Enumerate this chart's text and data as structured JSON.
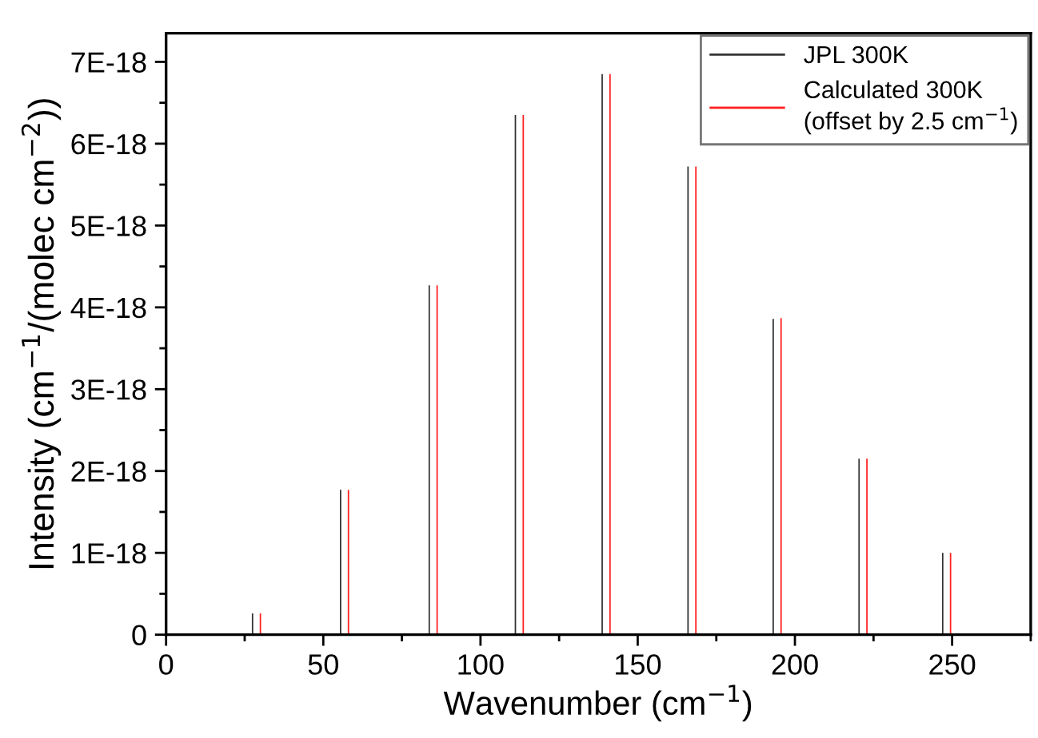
{
  "chart_data": {
    "type": "bar",
    "xlabel": "Wavenumber (cm$^{−1}$)",
    "ylabel": "Intensity (cm$^{−1}$/(molec cm$^{−2}$))",
    "series": [
      {
        "name": "JPL 300K",
        "color": "#333333",
        "x": [
          27.5,
          55.5,
          83.7,
          111.1,
          138.7,
          166,
          193.1,
          220.4,
          247
        ],
        "values": [
          2.6e-19,
          1.77e-18,
          4.27e-18,
          6.35e-18,
          6.85e-18,
          5.72e-18,
          3.86e-18,
          2.15e-18,
          1e-18
        ]
      },
      {
        "name": "Calculated 300K\n(offset by 2.5 cm$^{−1}$)",
        "color": "#ff2020",
        "x": [
          30,
          58,
          86.2,
          113.6,
          141.2,
          168.5,
          195.6,
          222.9,
          249.5
        ],
        "values": [
          2.6e-19,
          1.77e-18,
          4.27e-18,
          6.35e-18,
          6.85e-18,
          5.72e-18,
          3.87e-18,
          2.15e-18,
          1e-18
        ]
      }
    ],
    "xlim": [
      0,
      275
    ],
    "xticks": [
      0,
      {
        "value": 25,
        "label": null
      },
      50,
      {
        "value": 75,
        "label": null
      },
      100,
      {
        "value": 125,
        "label": null
      },
      150,
      {
        "value": 175,
        "label": null
      },
      200,
      {
        "value": 225,
        "label": null
      },
      250,
      {
        "value": 275,
        "label": null
      }
    ],
    "ylim": [
      0,
      7.35e-18
    ],
    "yticks": [
      0,
      {
        "value": 5e-19,
        "label": null
      },
      {
        "value": 1e-18,
        "label": "1E-18"
      },
      {
        "value": 1.5e-18,
        "label": null
      },
      {
        "value": 2e-18,
        "label": "2E-18"
      },
      {
        "value": 2.5e-18,
        "label": null
      },
      {
        "value": 3e-18,
        "label": "3E-18"
      },
      {
        "value": 3.5e-18,
        "label": null
      },
      {
        "value": 4e-18,
        "label": "4E-18"
      },
      {
        "value": 4.5e-18,
        "label": null
      },
      {
        "value": 5e-18,
        "label": "5E-18"
      },
      {
        "value": 5.5e-18,
        "label": null
      },
      {
        "value": 6e-18,
        "label": "6E-18"
      },
      {
        "value": 6.5e-18,
        "label": null
      },
      {
        "value": 7e-18,
        "label": "7E-18"
      }
    ],
    "grid": false,
    "legend": "top right"
  }
}
